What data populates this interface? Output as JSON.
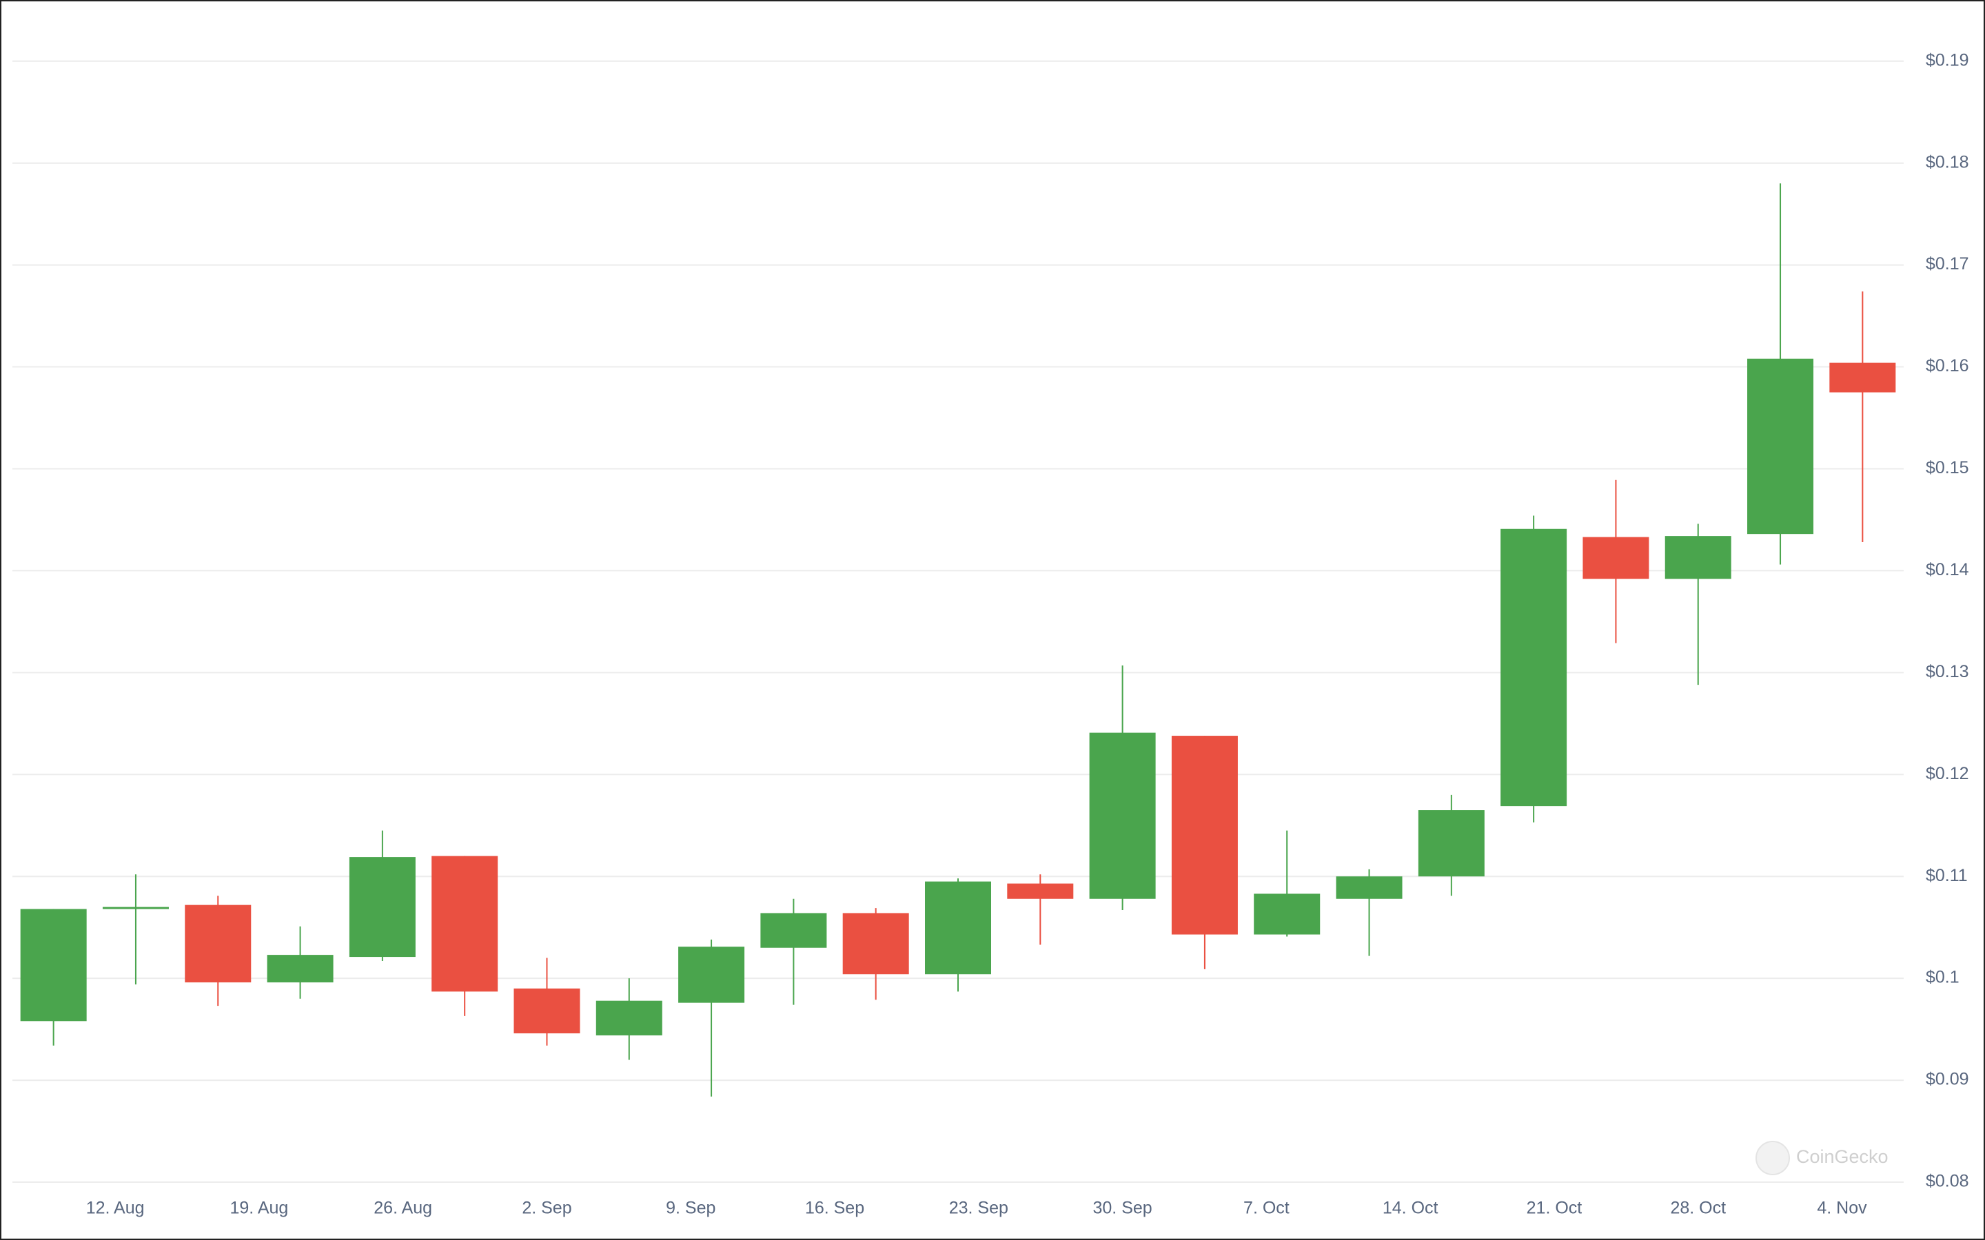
{
  "chart_data": {
    "type": "candlestick",
    "x": [
      "9. Aug",
      "13. Aug",
      "17. Aug",
      "21. Aug",
      "25. Aug",
      "29. Aug",
      "2. Sep",
      "6. Sep",
      "10. Sep",
      "14. Sep",
      "18. Sep",
      "22. Sep",
      "26. Sep",
      "30. Sep",
      "4. Oct",
      "8. Oct",
      "12. Oct",
      "16. Oct",
      "20. Oct",
      "24. Oct",
      "28. Oct",
      "1. Nov",
      "5. Nov"
    ],
    "open": [
      0.0958,
      0.1068,
      0.1072,
      0.0996,
      0.1021,
      0.112,
      0.099,
      0.0944,
      0.0976,
      0.103,
      0.1064,
      0.1004,
      0.1093,
      0.1078,
      0.1238,
      0.1043,
      0.1078,
      0.11,
      0.1169,
      0.1433,
      0.1392,
      0.1436,
      0.1604
    ],
    "high": [
      0.1068,
      0.1102,
      0.1081,
      0.1051,
      0.1145,
      0.112,
      0.102,
      0.1,
      0.1038,
      0.1078,
      0.1069,
      0.1098,
      0.1102,
      0.1307,
      0.1238,
      0.1145,
      0.1107,
      0.118,
      0.1454,
      0.1489,
      0.1446,
      0.178,
      0.1674
    ],
    "low": [
      0.0934,
      0.0994,
      0.0973,
      0.098,
      0.1017,
      0.0963,
      0.0934,
      0.092,
      0.0884,
      0.0974,
      0.0979,
      0.0987,
      0.1033,
      0.1067,
      0.1009,
      0.1041,
      0.1022,
      0.1081,
      0.1153,
      0.1329,
      0.1288,
      0.1406,
      0.1428
    ],
    "close": [
      0.1068,
      0.107,
      0.0996,
      0.1023,
      0.1119,
      0.0987,
      0.0946,
      0.0978,
      0.1031,
      0.1064,
      0.1004,
      0.1095,
      0.1078,
      0.1241,
      0.1043,
      0.1083,
      0.11,
      0.1165,
      0.1441,
      0.1392,
      0.1434,
      0.1608,
      0.1575
    ],
    "up_color": "#4aa54d",
    "down_color": "#ea5041",
    "xlim": [
      "7. Aug",
      "7. Nov"
    ],
    "xticks": [
      "12. Aug",
      "19. Aug",
      "26. Aug",
      "2. Sep",
      "9. Sep",
      "16. Sep",
      "23. Sep",
      "30. Sep",
      "7. Oct",
      "14. Oct",
      "21. Oct",
      "28. Oct",
      "4. Nov"
    ],
    "ylim": [
      0.08,
      0.196
    ],
    "yticks": [
      {
        "value": 0.08,
        "label": "$0.08"
      },
      {
        "value": 0.09,
        "label": "$0.09"
      },
      {
        "value": 0.1,
        "label": "$0.1"
      },
      {
        "value": 0.11,
        "label": "$0.11"
      },
      {
        "value": 0.12,
        "label": "$0.12"
      },
      {
        "value": 0.13,
        "label": "$0.13"
      },
      {
        "value": 0.14,
        "label": "$0.14"
      },
      {
        "value": 0.15,
        "label": "$0.15"
      },
      {
        "value": 0.16,
        "label": "$0.16"
      },
      {
        "value": 0.17,
        "label": "$0.17"
      },
      {
        "value": 0.18,
        "label": "$0.18"
      },
      {
        "value": 0.19,
        "label": "$0.19"
      }
    ],
    "grid": true,
    "watermark": "CoinGecko"
  }
}
